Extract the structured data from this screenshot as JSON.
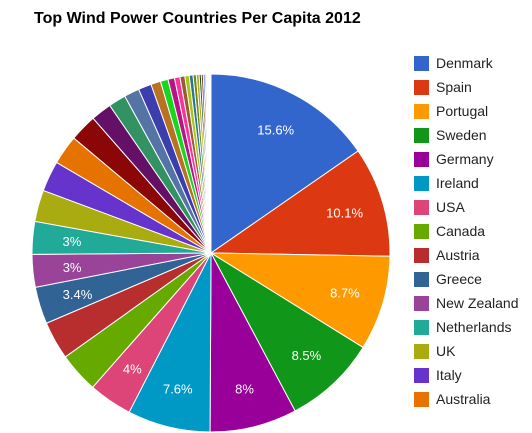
{
  "chart_data": {
    "type": "pie",
    "title": "Top Wind Power Countries Per Capita 2012",
    "legend_position": "right",
    "slices": [
      {
        "label": "Denmark",
        "value": 15.6,
        "color": "#3366cc",
        "data_label": "15.6%"
      },
      {
        "label": "Spain",
        "value": 10.1,
        "color": "#dc3912",
        "data_label": "10.1%"
      },
      {
        "label": "Portugal",
        "value": 8.7,
        "color": "#ff9900",
        "data_label": "8.7%"
      },
      {
        "label": "Sweden",
        "value": 8.5,
        "color": "#109618",
        "data_label": "8.5%"
      },
      {
        "label": "Germany",
        "value": 8.0,
        "color": "#990099",
        "data_label": "8%"
      },
      {
        "label": "Ireland",
        "value": 7.6,
        "color": "#0099c6",
        "data_label": "7.6%"
      },
      {
        "label": "USA",
        "value": 4.0,
        "color": "#dd4477",
        "data_label": "4%"
      },
      {
        "label": "Canada",
        "value": 3.7,
        "color": "#66aa00",
        "data_label": ""
      },
      {
        "label": "Austria",
        "value": 3.5,
        "color": "#b82e2e",
        "data_label": ""
      },
      {
        "label": "Greece",
        "value": 3.4,
        "color": "#316395",
        "data_label": "3.4%"
      },
      {
        "label": "New Zealand",
        "value": 3.0,
        "color": "#994499",
        "data_label": "3%"
      },
      {
        "label": "Netherlands",
        "value": 3.0,
        "color": "#22aa99",
        "data_label": "3%"
      },
      {
        "label": "UK",
        "value": 2.9,
        "color": "#aaaa11",
        "data_label": ""
      },
      {
        "label": "Italy",
        "value": 2.8,
        "color": "#6633cc",
        "data_label": ""
      },
      {
        "label": "Australia",
        "value": 2.7,
        "color": "#e67300",
        "data_label": ""
      },
      {
        "label": "",
        "value": 2.5,
        "color": "#8b0707",
        "data_label": ""
      },
      {
        "label": "",
        "value": 1.9,
        "color": "#651067",
        "data_label": ""
      },
      {
        "label": "",
        "value": 1.6,
        "color": "#329262",
        "data_label": ""
      },
      {
        "label": "",
        "value": 1.4,
        "color": "#5574a6",
        "data_label": ""
      },
      {
        "label": "",
        "value": 1.2,
        "color": "#3b3eac",
        "data_label": ""
      },
      {
        "label": "",
        "value": 0.9,
        "color": "#b77322",
        "data_label": ""
      },
      {
        "label": "",
        "value": 0.7,
        "color": "#16d620",
        "data_label": ""
      },
      {
        "label": "",
        "value": 0.6,
        "color": "#b91383",
        "data_label": ""
      },
      {
        "label": "",
        "value": 0.5,
        "color": "#f4359e",
        "data_label": ""
      },
      {
        "label": "",
        "value": 0.45,
        "color": "#9c5935",
        "data_label": ""
      },
      {
        "label": "",
        "value": 0.4,
        "color": "#a9c413",
        "data_label": ""
      },
      {
        "label": "",
        "value": 0.35,
        "color": "#2a778d",
        "data_label": ""
      },
      {
        "label": "",
        "value": 0.3,
        "color": "#668d1c",
        "data_label": ""
      },
      {
        "label": "",
        "value": 0.25,
        "color": "#bea413",
        "data_label": ""
      },
      {
        "label": "",
        "value": 0.2,
        "color": "#0c5922",
        "data_label": ""
      },
      {
        "label": "",
        "value": 0.18,
        "color": "#743411",
        "data_label": ""
      },
      {
        "label": "",
        "value": 0.15,
        "color": "#3366cc",
        "data_label": ""
      },
      {
        "label": "",
        "value": 0.12,
        "color": "#dc3912",
        "data_label": ""
      },
      {
        "label": "",
        "value": 0.1,
        "color": "#ff9900",
        "data_label": ""
      },
      {
        "label": "",
        "value": 0.08,
        "color": "#109618",
        "data_label": ""
      },
      {
        "label": "",
        "value": 0.07,
        "color": "#990099",
        "data_label": ""
      },
      {
        "label": "",
        "value": 0.06,
        "color": "#0099c6",
        "data_label": ""
      },
      {
        "label": "",
        "value": 0.05,
        "color": "#dd4477",
        "data_label": ""
      },
      {
        "label": "",
        "value": 0.04,
        "color": "#66aa00",
        "data_label": ""
      },
      {
        "label": "",
        "value": 0.03,
        "color": "#b82e2e",
        "data_label": ""
      }
    ]
  }
}
